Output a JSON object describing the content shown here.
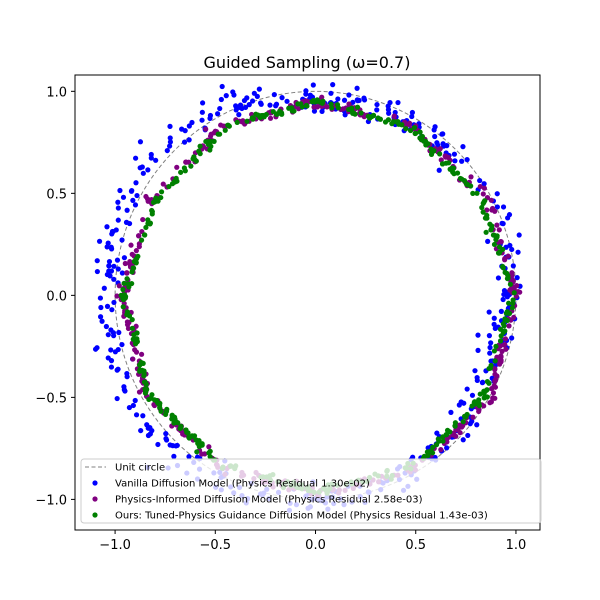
{
  "chart_data": {
    "type": "scatter",
    "title": "Guided Sampling (ω=0.7)",
    "xlabel": "",
    "ylabel": "",
    "xlim": [
      -1.2,
      1.12
    ],
    "ylim": [
      -1.15,
      1.08
    ],
    "xticks": [
      -1.0,
      -0.5,
      0.0,
      0.5,
      1.0
    ],
    "yticks": [
      -1.0,
      -0.5,
      0.0,
      0.5,
      1.0
    ],
    "xtick_labels": [
      "−1.0",
      "−0.5",
      "0.0",
      "0.5",
      "1.0"
    ],
    "ytick_labels": [
      "−1.0",
      "−0.5",
      "0.0",
      "0.5",
      "1.0"
    ],
    "grid": false,
    "legend_position": "lower-center",
    "reference_curve": {
      "name": "Unit circle",
      "radius": 1.0,
      "style": "dashed",
      "color": "#808080"
    },
    "series": [
      {
        "name": "Vanilla Diffusion Model (Physics Residual 1.30e-02)",
        "color": "#0000ff",
        "anchors": [
          {
            "t": 0,
            "x": 0.98,
            "y": 0.06
          },
          {
            "t": 15,
            "x": 0.93,
            "y": 0.42
          },
          {
            "t": 30,
            "x": 0.75,
            "y": 0.65
          },
          {
            "t": 45,
            "x": 0.6,
            "y": 0.78
          },
          {
            "t": 60,
            "x": 0.42,
            "y": 0.87
          },
          {
            "t": 75,
            "x": 0.22,
            "y": 0.93
          },
          {
            "t": 90,
            "x": 0.0,
            "y": 0.96
          },
          {
            "t": 105,
            "x": -0.3,
            "y": 0.95
          },
          {
            "t": 120,
            "x": -0.55,
            "y": 0.88
          },
          {
            "t": 135,
            "x": -0.78,
            "y": 0.73
          },
          {
            "t": 150,
            "x": -0.92,
            "y": 0.51
          },
          {
            "t": 165,
            "x": -1.01,
            "y": 0.24
          },
          {
            "t": 180,
            "x": -1.04,
            "y": -0.05
          },
          {
            "t": 195,
            "x": -1.0,
            "y": -0.33
          },
          {
            "t": 210,
            "x": -0.88,
            "y": -0.6
          },
          {
            "t": 225,
            "x": -0.68,
            "y": -0.8
          },
          {
            "t": 240,
            "x": -0.45,
            "y": -0.94
          },
          {
            "t": 255,
            "x": -0.18,
            "y": -1.0
          },
          {
            "t": 270,
            "x": 0.08,
            "y": -1.0
          },
          {
            "t": 285,
            "x": 0.35,
            "y": -0.94
          },
          {
            "t": 300,
            "x": 0.6,
            "y": -0.78
          },
          {
            "t": 315,
            "x": 0.76,
            "y": -0.58
          },
          {
            "t": 330,
            "x": 0.87,
            "y": -0.36
          },
          {
            "t": 345,
            "x": 0.92,
            "y": -0.12
          },
          {
            "t": 360,
            "x": 0.98,
            "y": 0.06
          }
        ],
        "spread": 0.035,
        "count": 420
      },
      {
        "name": "Physics-Informed Diffusion Model (Physics Residual  2.58e-03)",
        "color": "#800080",
        "anchors": [
          {
            "t": 0,
            "x": 1.0,
            "y": 0.0
          },
          {
            "t": 30,
            "x": 0.86,
            "y": 0.48
          },
          {
            "t": 60,
            "x": 0.47,
            "y": 0.84
          },
          {
            "t": 90,
            "x": 0.0,
            "y": 0.95
          },
          {
            "t": 120,
            "x": -0.46,
            "y": 0.83
          },
          {
            "t": 150,
            "x": -0.82,
            "y": 0.47
          },
          {
            "t": 180,
            "x": -0.97,
            "y": 0.0
          },
          {
            "t": 210,
            "x": -0.84,
            "y": -0.5
          },
          {
            "t": 240,
            "x": -0.48,
            "y": -0.84
          },
          {
            "t": 270,
            "x": 0.0,
            "y": -0.97
          },
          {
            "t": 300,
            "x": 0.5,
            "y": -0.85
          },
          {
            "t": 330,
            "x": 0.88,
            "y": -0.5
          },
          {
            "t": 360,
            "x": 1.0,
            "y": 0.0
          }
        ],
        "spread": 0.012,
        "count": 420
      },
      {
        "name": "Ours: Tuned-Physics Guidance Diffusion Model (Physics Residual  1.43e-03)",
        "color": "#008000",
        "anchors": [
          {
            "t": 0,
            "x": 0.98,
            "y": 0.0
          },
          {
            "t": 30,
            "x": 0.83,
            "y": 0.47
          },
          {
            "t": 60,
            "x": 0.47,
            "y": 0.83
          },
          {
            "t": 90,
            "x": 0.0,
            "y": 0.95
          },
          {
            "t": 120,
            "x": -0.46,
            "y": 0.82
          },
          {
            "t": 150,
            "x": -0.8,
            "y": 0.46
          },
          {
            "t": 180,
            "x": -0.96,
            "y": 0.0
          },
          {
            "t": 210,
            "x": -0.83,
            "y": -0.49
          },
          {
            "t": 240,
            "x": -0.48,
            "y": -0.83
          },
          {
            "t": 270,
            "x": 0.0,
            "y": -0.96
          },
          {
            "t": 300,
            "x": 0.49,
            "y": -0.84
          },
          {
            "t": 330,
            "x": 0.85,
            "y": -0.49
          },
          {
            "t": 360,
            "x": 0.98,
            "y": 0.0
          }
        ],
        "spread": 0.01,
        "count": 420
      }
    ]
  }
}
